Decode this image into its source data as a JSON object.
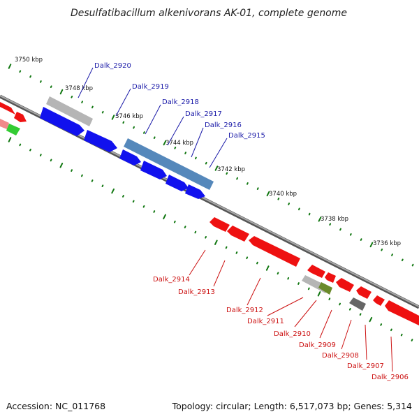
{
  "title": "Desulfatibacillum alkenivorans AK-01, complete genome",
  "footer": {
    "accession": "Accession: NC_011768",
    "summary": "Topology: circular; Length: 6,517,073 bp; Genes: 5,314"
  },
  "colors": {
    "forward_gene": "#1111ee",
    "reverse_gene": "#ee1111",
    "forward_label": "#1a1aa8",
    "reverse_label": "#cc1111",
    "highlight_gene": "#5588bb",
    "pseudo_gene": "#b5b5b5",
    "rna_gene": "#6a8a2a",
    "dark_gene": "#666666",
    "backbone": "#8a8a8a",
    "tick_mark": "#117711"
  },
  "ticks": [
    "3750 kbp",
    "3748 kbp",
    "3746 kbp",
    "3744 kbp",
    "3742 kbp",
    "3740 kbp",
    "3738 kbp",
    "3736 kbp"
  ],
  "forward_genes": [
    "Dalk_2920",
    "Dalk_2919",
    "Dalk_2918",
    "Dalk_2917",
    "Dalk_2916",
    "Dalk_2915"
  ],
  "reverse_genes": [
    "Dalk_2914",
    "Dalk_2913",
    "Dalk_2912",
    "Dalk_2911",
    "Dalk_2910",
    "Dalk_2909",
    "Dalk_2908",
    "Dalk_2907",
    "Dalk_2906"
  ]
}
